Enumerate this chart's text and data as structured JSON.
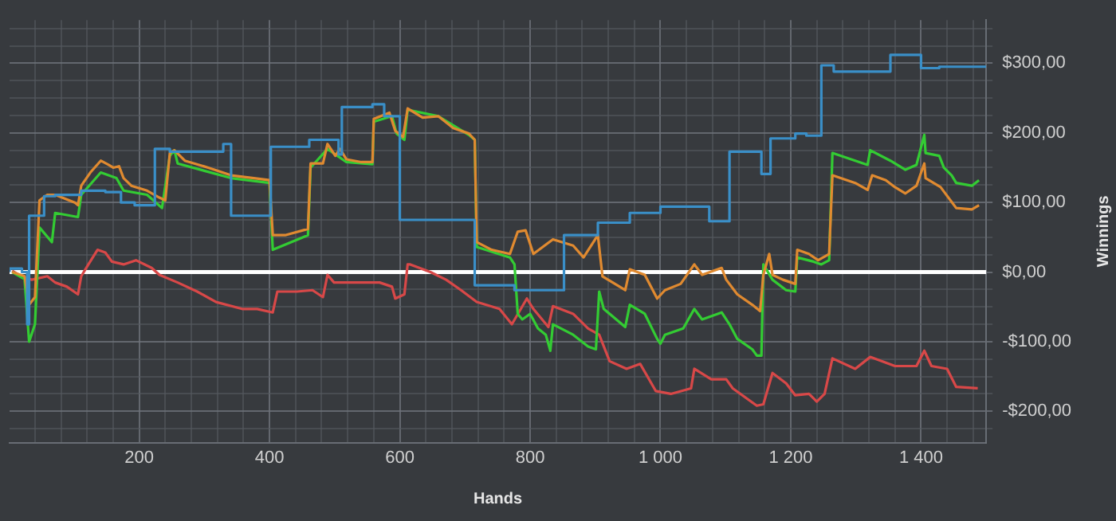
{
  "chart_data": {
    "type": "line",
    "xlabel": "Hands",
    "ylabel": "Winnings",
    "grid": true,
    "legend": false,
    "marker": "none",
    "line_style": "solid",
    "xlim": [
      1,
      1500
    ],
    "xticks": [
      {
        "value": 40,
        "label": null
      },
      {
        "value": 80,
        "label": null
      },
      {
        "value": 120,
        "label": null
      },
      {
        "value": 160,
        "label": null
      },
      200,
      {
        "value": 240,
        "label": null
      },
      {
        "value": 280,
        "label": null
      },
      {
        "value": 320,
        "label": null
      },
      {
        "value": 360,
        "label": null
      },
      400,
      {
        "value": 440,
        "label": null
      },
      {
        "value": 480,
        "label": null
      },
      {
        "value": 520,
        "label": null
      },
      {
        "value": 560,
        "label": null
      },
      600,
      {
        "value": 640,
        "label": null
      },
      {
        "value": 680,
        "label": null
      },
      {
        "value": 720,
        "label": null
      },
      {
        "value": 760,
        "label": null
      },
      800,
      {
        "value": 840,
        "label": null
      },
      {
        "value": 880,
        "label": null
      },
      {
        "value": 920,
        "label": null
      },
      {
        "value": 960,
        "label": null
      },
      {
        "value": 1000,
        "label": "1 000"
      },
      {
        "value": 1040,
        "label": null
      },
      {
        "value": 1080,
        "label": null
      },
      {
        "value": 1120,
        "label": null
      },
      {
        "value": 1160,
        "label": null
      },
      {
        "value": 1200,
        "label": "1 200"
      },
      {
        "value": 1240,
        "label": null
      },
      {
        "value": 1280,
        "label": null
      },
      {
        "value": 1320,
        "label": null
      },
      {
        "value": 1360,
        "label": null
      },
      {
        "value": 1400,
        "label": "1 400"
      },
      {
        "value": 1440,
        "label": null
      },
      {
        "value": 1480,
        "label": null
      }
    ],
    "ylim": [
      -245,
      362
    ],
    "yticks": [
      {
        "value": -225,
        "label": null
      },
      {
        "value": -200,
        "label": "-$200,00"
      },
      {
        "value": -175,
        "label": null
      },
      {
        "value": -150,
        "label": null
      },
      {
        "value": -125,
        "label": null
      },
      {
        "value": -100,
        "label": "-$100,00"
      },
      {
        "value": -75,
        "label": null
      },
      {
        "value": -50,
        "label": null
      },
      {
        "value": -25,
        "label": null
      },
      {
        "value": 0,
        "label": "$0,00"
      },
      {
        "value": 25,
        "label": null
      },
      {
        "value": 50,
        "label": null
      },
      {
        "value": 75,
        "label": null
      },
      {
        "value": 100,
        "label": "$100,00"
      },
      {
        "value": 125,
        "label": null
      },
      {
        "value": 150,
        "label": null
      },
      {
        "value": 175,
        "label": null
      },
      {
        "value": 200,
        "label": "$200,00"
      },
      {
        "value": 225,
        "label": null
      },
      {
        "value": 250,
        "label": null
      },
      {
        "value": 275,
        "label": null
      },
      {
        "value": 300,
        "label": "$300,00"
      },
      {
        "value": 325,
        "label": null
      },
      {
        "value": 350,
        "label": null
      }
    ],
    "ref_lines": [
      {
        "axis": "y",
        "value": 0,
        "color": "#ffffff"
      }
    ],
    "series": [
      {
        "type": "step",
        "color": "#3a8fc8",
        "x": [
          1,
          20,
          28,
          31,
          54,
          71,
          111,
          148,
          172,
          193,
          224,
          247,
          329,
          341,
          402,
          461,
          506,
          511,
          558,
          576,
          600,
          715,
          776,
          852,
          904,
          953,
          1000,
          1075,
          1106,
          1155,
          1169,
          1207,
          1224,
          1247,
          1266,
          1353,
          1400,
          1428,
          1500
        ],
        "values": [
          0,
          5,
          0,
          -75,
          81,
          109,
          111,
          117,
          115,
          100,
          96,
          177,
          173,
          184,
          81,
          180,
          190,
          169,
          237,
          241,
          224,
          75,
          -19,
          -26,
          53,
          71,
          85,
          94,
          73,
          173,
          141,
          192,
          199,
          196,
          297,
          288,
          312,
          293,
          295
        ]
      },
      {
        "type": "line",
        "color": "#e08a30",
        "x": [
          5,
          24,
          31,
          40,
          47,
          59,
          71,
          101,
          106,
          111,
          125,
          141,
          153,
          160,
          169,
          176,
          188,
          212,
          231,
          240,
          247,
          254,
          270,
          306,
          341,
          376,
          400,
          405,
          424,
          459,
          463,
          482,
          489,
          501,
          508,
          518,
          541,
          558,
          560,
          584,
          593,
          605,
          612,
          635,
          659,
          682,
          706,
          715,
          718,
          741,
          769,
          781,
          793,
          805,
          835,
          866,
          882,
          904,
          911,
          946,
          953,
          976,
          995,
          1007,
          1031,
          1052,
          1064,
          1094,
          1101,
          1118,
          1141,
          1153,
          1158,
          1167,
          1172,
          1188,
          1207,
          1210,
          1228,
          1242,
          1259,
          1264,
          1299,
          1318,
          1325,
          1346,
          1360,
          1376,
          1393,
          1405,
          1407,
          1430,
          1454,
          1478,
          1489
        ],
        "values": [
          0,
          -6,
          -47,
          -36,
          103,
          111,
          111,
          100,
          96,
          124,
          143,
          160,
          154,
          150,
          152,
          135,
          124,
          117,
          107,
          103,
          171,
          175,
          160,
          150,
          139,
          135,
          132,
          53,
          53,
          62,
          156,
          156,
          184,
          167,
          177,
          162,
          158,
          158,
          220,
          229,
          203,
          194,
          235,
          222,
          224,
          207,
          199,
          190,
          43,
          32,
          26,
          58,
          60,
          26,
          47,
          38,
          21,
          53,
          -6,
          -26,
          4,
          -4,
          -38,
          -26,
          -17,
          11,
          -4,
          6,
          -11,
          -32,
          -47,
          -56,
          -4,
          26,
          -4,
          -11,
          -17,
          32,
          26,
          17,
          26,
          139,
          128,
          118,
          139,
          132,
          122,
          113,
          124,
          156,
          135,
          122,
          92,
          90,
          96
        ]
      },
      {
        "type": "line",
        "color": "#33cc33",
        "x": [
          5,
          24,
          31,
          40,
          47,
          66,
          71,
          106,
          111,
          141,
          165,
          176,
          212,
          235,
          247,
          254,
          259,
          341,
          400,
          405,
          459,
          463,
          489,
          518,
          558,
          560,
          588,
          595,
          607,
          612,
          659,
          706,
          715,
          718,
          769,
          776,
          781,
          788,
          800,
          812,
          824,
          831,
          835,
          866,
          889,
          901,
          906,
          913,
          946,
          953,
          976,
          995,
          1000,
          1007,
          1035,
          1052,
          1064,
          1094,
          1106,
          1118,
          1141,
          1148,
          1155,
          1158,
          1172,
          1193,
          1207,
          1210,
          1235,
          1247,
          1259,
          1264,
          1299,
          1318,
          1322,
          1353,
          1376,
          1393,
          1405,
          1407,
          1428,
          1435,
          1447,
          1454,
          1478,
          1489
        ],
        "values": [
          0,
          -10,
          -100,
          -75,
          64,
          43,
          85,
          79,
          111,
          143,
          135,
          117,
          111,
          92,
          167,
          175,
          156,
          135,
          128,
          32,
          53,
          150,
          177,
          158,
          155,
          216,
          224,
          199,
          190,
          233,
          224,
          197,
          190,
          36,
          21,
          11,
          -60,
          -68,
          -60,
          -81,
          -90,
          -113,
          -75,
          -90,
          -107,
          -111,
          -28,
          -53,
          -79,
          -47,
          -60,
          -96,
          -103,
          -90,
          -81,
          -53,
          -68,
          -58,
          -75,
          -96,
          -111,
          -120,
          -120,
          11,
          -11,
          -26,
          -28,
          21,
          15,
          11,
          17,
          171,
          160,
          154,
          175,
          160,
          147,
          154,
          197,
          171,
          167,
          150,
          139,
          128,
          124,
          132
        ]
      },
      {
        "type": "line",
        "color": "#d84848",
        "x": [
          5,
          19,
          35,
          59,
          71,
          89,
          106,
          111,
          122,
          136,
          148,
          158,
          176,
          195,
          219,
          231,
          259,
          289,
          318,
          358,
          381,
          405,
          412,
          442,
          466,
          482,
          489,
          499,
          536,
          569,
          588,
          593,
          607,
          612,
          616,
          647,
          671,
          694,
          718,
          753,
          772,
          795,
          805,
          828,
          835,
          866,
          889,
          906,
          922,
          948,
          969,
          993,
          1016,
          1047,
          1052,
          1078,
          1101,
          1111,
          1148,
          1158,
          1172,
          1193,
          1207,
          1228,
          1240,
          1252,
          1264,
          1299,
          1322,
          1360,
          1393,
          1405,
          1416,
          1440,
          1454,
          1487
        ],
        "values": [
          2,
          -6,
          -11,
          -6,
          -15,
          -21,
          -32,
          -6,
          11,
          32,
          28,
          15,
          11,
          17,
          6,
          -4,
          -15,
          -28,
          -43,
          -53,
          -53,
          -58,
          -28,
          -28,
          -26,
          -36,
          -4,
          -15,
          -15,
          -15,
          -21,
          -38,
          -32,
          11,
          11,
          0,
          -11,
          -26,
          -43,
          -53,
          -75,
          -38,
          -53,
          -79,
          -49,
          -60,
          -81,
          -90,
          -128,
          -139,
          -132,
          -171,
          -175,
          -167,
          -139,
          -154,
          -154,
          -167,
          -192,
          -190,
          -145,
          -160,
          -177,
          -175,
          -186,
          -175,
          -124,
          -139,
          -122,
          -135,
          -135,
          -113,
          -135,
          -139,
          -165,
          -167
        ]
      }
    ]
  }
}
